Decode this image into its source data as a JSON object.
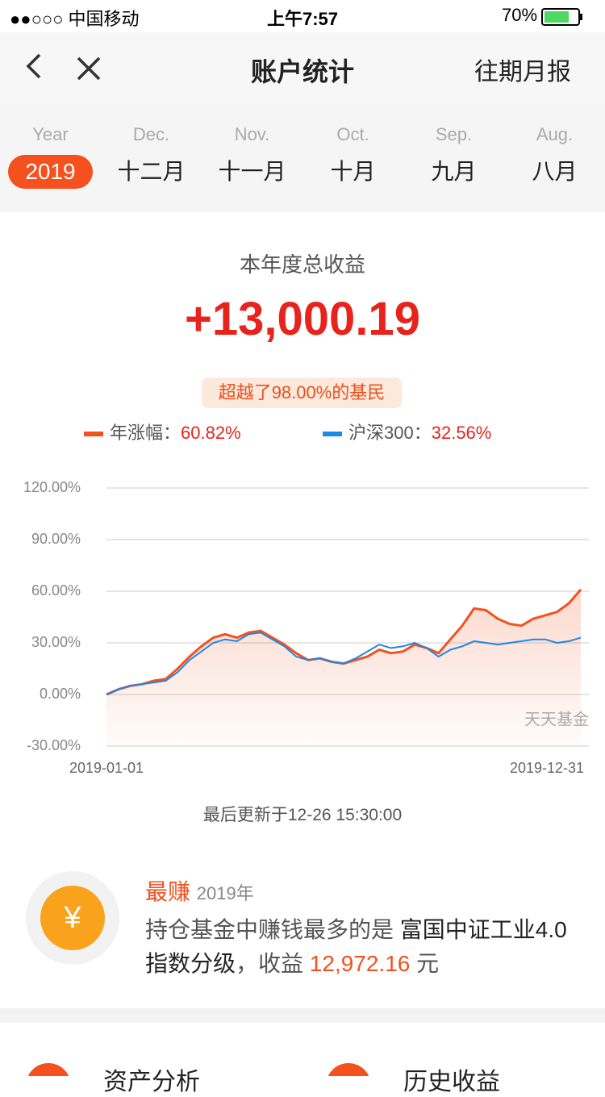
{
  "status_bar": {
    "carrier": "●●○○○ 中国移动",
    "time": "上午7:57",
    "battery": "70%"
  },
  "nav": {
    "title": "账户统计",
    "right": "往期月报"
  },
  "tabs": [
    {
      "top": "Year",
      "label": "2019"
    },
    {
      "top": "Dec.",
      "label": "十二月"
    },
    {
      "top": "Nov.",
      "label": "十一月"
    },
    {
      "top": "Oct.",
      "label": "十月"
    },
    {
      "top": "Sep.",
      "label": "九月"
    },
    {
      "top": "Aug.",
      "label": "八月"
    }
  ],
  "summary": {
    "title": "本年度总收益",
    "amount": "+13,000.19",
    "badge": "超越了98.00%的基民"
  },
  "chart_data": {
    "type": "line",
    "legend_separator": "：",
    "categories": [
      "2019-01-01",
      null,
      null,
      null,
      null,
      null,
      null,
      null,
      null,
      null,
      null,
      null,
      null,
      null,
      null,
      null,
      null,
      null,
      null,
      null,
      null,
      null,
      null,
      null,
      null,
      null,
      null,
      null,
      null,
      null,
      null,
      null,
      null,
      null,
      null,
      null,
      null,
      null,
      null,
      null,
      "2019-12-31"
    ],
    "series": [
      {
        "name": "年涨幅",
        "color": "#f4511e",
        "total_label": "60.82%",
        "values": [
          0,
          3,
          5,
          6,
          8,
          9,
          15,
          22,
          28,
          33,
          35,
          33,
          36,
          37,
          33,
          29,
          24,
          20,
          21,
          19,
          18,
          20,
          22,
          26,
          24,
          25,
          29,
          27,
          24,
          32,
          40,
          50,
          49,
          44,
          41,
          40,
          44,
          46,
          48,
          53,
          61
        ]
      },
      {
        "name": "沪深300",
        "color": "#1e88e5",
        "total_label": "32.56%",
        "values": [
          0,
          3,
          5,
          6,
          7,
          8,
          13,
          20,
          25,
          30,
          32,
          31,
          35,
          36,
          32,
          28,
          22,
          20,
          21,
          19,
          18,
          21,
          25,
          29,
          27,
          28,
          30,
          27,
          22,
          26,
          28,
          31,
          30,
          29,
          30,
          31,
          32,
          32,
          30,
          31,
          33
        ]
      }
    ],
    "ylim": [
      -30,
      120
    ],
    "yticks": [
      {
        "value": -30,
        "label": "-30.00%"
      },
      {
        "value": 0,
        "label": "0.00%"
      },
      {
        "value": 30,
        "label": "30.00%"
      },
      {
        "value": 60,
        "label": "60.00%"
      },
      {
        "value": 90,
        "label": "90.00%"
      },
      {
        "value": 120,
        "label": "120.00%"
      }
    ],
    "grid": true,
    "watermark": "天天基金"
  },
  "updated": "最后更新于12-26 15:30:00",
  "best": {
    "tag": "最赚",
    "year": "2019年",
    "icon": "¥",
    "text": "持仓基金中赚钱最多的是 ",
    "fund": "富国中证工业4.0指数分级",
    "text2": "，收益 ",
    "amount": "12,972.16",
    "unit": " 元"
  },
  "bottom": {
    "items": [
      "资产分析",
      "历史收益"
    ]
  }
}
